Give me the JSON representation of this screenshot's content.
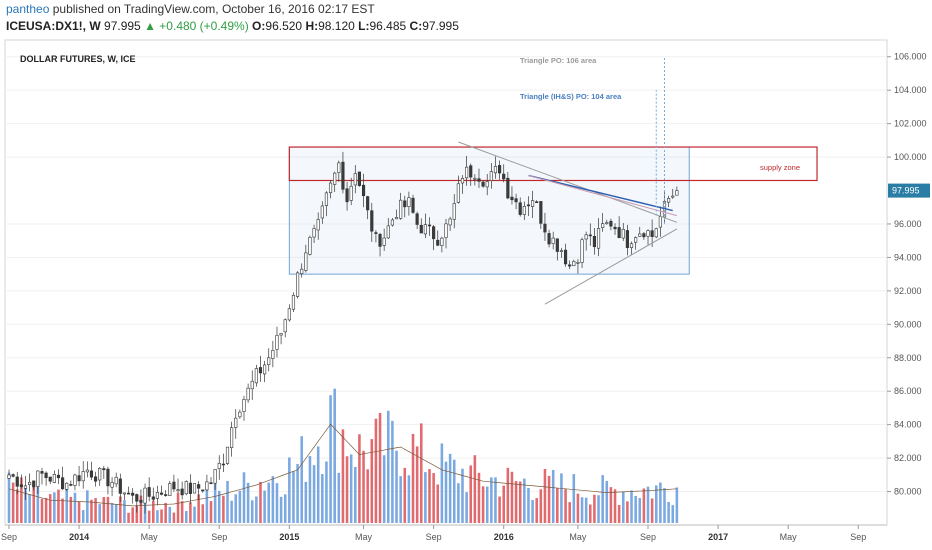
{
  "header": {
    "user": "pantheo",
    "published_text": "published on TradingView.com, October 16, 2016 02:17 EST"
  },
  "quote": {
    "symbol": "ICEUSA:DX1!, W",
    "last": "97.995",
    "arrow": "▲",
    "change": "+0.480 (+0.49%)",
    "o_label": "O:",
    "o_value": "96.520",
    "h_label": "H:",
    "h_value": "98.120",
    "l_label": "L:",
    "l_value": "96.485",
    "c_label": "C:",
    "c_value": "97.995"
  },
  "colors": {
    "up": "#45a8a0",
    "down": "#3b3b3b",
    "vol_up": "#7aa8e0",
    "vol_down": "#e06a6e",
    "box_blue": "#6fa3d6",
    "supply_red": "#c0282d",
    "trend_blue": "#2d5fb0",
    "triangle_gray": "#9a9a9a",
    "price_tag": "#2a7ea6"
  },
  "chart_data": {
    "type": "candlestick",
    "title": "DOLLAR FUTURES, W, ICE",
    "y_ticks": [
      "80.000",
      "82.000",
      "84.000",
      "86.000",
      "88.000",
      "90.000",
      "92.000",
      "94.000",
      "96.000",
      "97.995",
      "100.000",
      "102.000",
      "104.000",
      "106.000"
    ],
    "y_tick_values": [
      80,
      82,
      84,
      86,
      88,
      90,
      92,
      94,
      96,
      97.995,
      100,
      102,
      104,
      106
    ],
    "ylim": [
      78,
      107
    ],
    "x_ticks": [
      {
        "label": "Sep",
        "t": 0,
        "year": false
      },
      {
        "label": "2014",
        "t": 17,
        "year": true
      },
      {
        "label": "May",
        "t": 34,
        "year": false
      },
      {
        "label": "Sep",
        "t": 51,
        "year": false
      },
      {
        "label": "2015",
        "t": 68,
        "year": true
      },
      {
        "label": "May",
        "t": 86,
        "year": false
      },
      {
        "label": "Sep",
        "t": 103,
        "year": false
      },
      {
        "label": "2016",
        "t": 120,
        "year": true
      },
      {
        "label": "May",
        "t": 138,
        "year": false
      },
      {
        "label": "Sep",
        "t": 155,
        "year": false
      },
      {
        "label": "2017",
        "t": 172,
        "year": true
      },
      {
        "label": "May",
        "t": 189,
        "year": false
      },
      {
        "label": "Sep",
        "t": 206,
        "year": false
      }
    ],
    "current_price": 97.995,
    "annotations": {
      "triangle_po": "Triangle PO: 106 area",
      "triangle_ihs_po": "Triangle (IH&S) PO: 104 area",
      "supply_zone": "supply zone"
    },
    "range_box": {
      "t0": 68,
      "t1": 165,
      "low": 93.0,
      "high": 100.6
    },
    "supply_zone": {
      "t0": 68,
      "t1": 196,
      "low": 98.6,
      "high": 100.6
    },
    "trend_lines": [
      {
        "kind": "upper_gray",
        "t0": 109,
        "p0": 100.9,
        "t1": 162,
        "p1": 96.1
      },
      {
        "kind": "lower_gray",
        "t0": 130,
        "p0": 91.2,
        "t1": 162,
        "p1": 95.7
      },
      {
        "kind": "neckline_blue",
        "t0": 126,
        "p0": 98.9,
        "t1": 161,
        "p1": 96.8
      },
      {
        "kind": "pink_upper",
        "t0": 126,
        "p0": 98.9,
        "t1": 162,
        "p1": 96.5
      }
    ],
    "projections": [
      {
        "t": 159,
        "from": 96.0,
        "to": 106.0,
        "label": "triangle_po"
      },
      {
        "t": 157,
        "from": 96.5,
        "to": 104.0,
        "label": "triangle_ihs_po"
      }
    ],
    "anchors": [
      {
        "t": 0,
        "p": 81.0
      },
      {
        "t": 4,
        "p": 80.4
      },
      {
        "t": 8,
        "p": 81.0
      },
      {
        "t": 14,
        "p": 80.5
      },
      {
        "t": 19,
        "p": 81.3
      },
      {
        "t": 25,
        "p": 80.6
      },
      {
        "t": 30,
        "p": 79.6
      },
      {
        "t": 35,
        "p": 79.8
      },
      {
        "t": 40,
        "p": 80.3
      },
      {
        "t": 45,
        "p": 80.1
      },
      {
        "t": 49,
        "p": 80.6
      },
      {
        "t": 52,
        "p": 82.0
      },
      {
        "t": 55,
        "p": 84.8
      },
      {
        "t": 58,
        "p": 86.0
      },
      {
        "t": 60,
        "p": 86.9
      },
      {
        "t": 63,
        "p": 88.0
      },
      {
        "t": 66,
        "p": 89.5
      },
      {
        "t": 69,
        "p": 92.0
      },
      {
        "t": 72,
        "p": 94.5
      },
      {
        "t": 75,
        "p": 95.8
      },
      {
        "t": 77,
        "p": 97.5
      },
      {
        "t": 80,
        "p": 99.6
      },
      {
        "t": 82,
        "p": 97.5
      },
      {
        "t": 84,
        "p": 99.3
      },
      {
        "t": 87,
        "p": 96.6
      },
      {
        "t": 89,
        "p": 95.0
      },
      {
        "t": 91,
        "p": 95.3
      },
      {
        "t": 94,
        "p": 96.8
      },
      {
        "t": 97,
        "p": 97.2
      },
      {
        "t": 99,
        "p": 96.0
      },
      {
        "t": 102,
        "p": 95.5
      },
      {
        "t": 104,
        "p": 95.2
      },
      {
        "t": 107,
        "p": 96.1
      },
      {
        "t": 110,
        "p": 99.0
      },
      {
        "t": 113,
        "p": 99.2
      },
      {
        "t": 116,
        "p": 98.5
      },
      {
        "t": 119,
        "p": 99.4
      },
      {
        "t": 121,
        "p": 98.0
      },
      {
        "t": 124,
        "p": 97.0
      },
      {
        "t": 127,
        "p": 97.6
      },
      {
        "t": 129,
        "p": 96.4
      },
      {
        "t": 131,
        "p": 95.3
      },
      {
        "t": 134,
        "p": 94.5
      },
      {
        "t": 136,
        "p": 93.5
      },
      {
        "t": 138,
        "p": 94.2
      },
      {
        "t": 140,
        "p": 95.4
      },
      {
        "t": 142,
        "p": 94.8
      },
      {
        "t": 144,
        "p": 95.8
      },
      {
        "t": 146,
        "p": 96.1
      },
      {
        "t": 148,
        "p": 95.6
      },
      {
        "t": 150,
        "p": 95.0
      },
      {
        "t": 152,
        "p": 95.5
      },
      {
        "t": 154,
        "p": 95.7
      },
      {
        "t": 156,
        "p": 95.3
      },
      {
        "t": 158,
        "p": 96.4
      },
      {
        "t": 160,
        "p": 97.5
      },
      {
        "t": 162,
        "p": 97.995
      }
    ],
    "volume_anchors": [
      {
        "t": 0,
        "v": 0.9
      },
      {
        "t": 10,
        "v": 0.6
      },
      {
        "t": 20,
        "v": 0.55
      },
      {
        "t": 30,
        "v": 0.45
      },
      {
        "t": 40,
        "v": 0.5
      },
      {
        "t": 50,
        "v": 0.7
      },
      {
        "t": 60,
        "v": 1.0
      },
      {
        "t": 70,
        "v": 1.4
      },
      {
        "t": 78,
        "v": 2.6
      },
      {
        "t": 85,
        "v": 1.8
      },
      {
        "t": 95,
        "v": 2.0
      },
      {
        "t": 105,
        "v": 1.4
      },
      {
        "t": 115,
        "v": 1.1
      },
      {
        "t": 125,
        "v": 1.0
      },
      {
        "t": 135,
        "v": 0.9
      },
      {
        "t": 145,
        "v": 0.8
      },
      {
        "t": 155,
        "v": 0.85
      },
      {
        "t": 162,
        "v": 0.9
      }
    ]
  }
}
